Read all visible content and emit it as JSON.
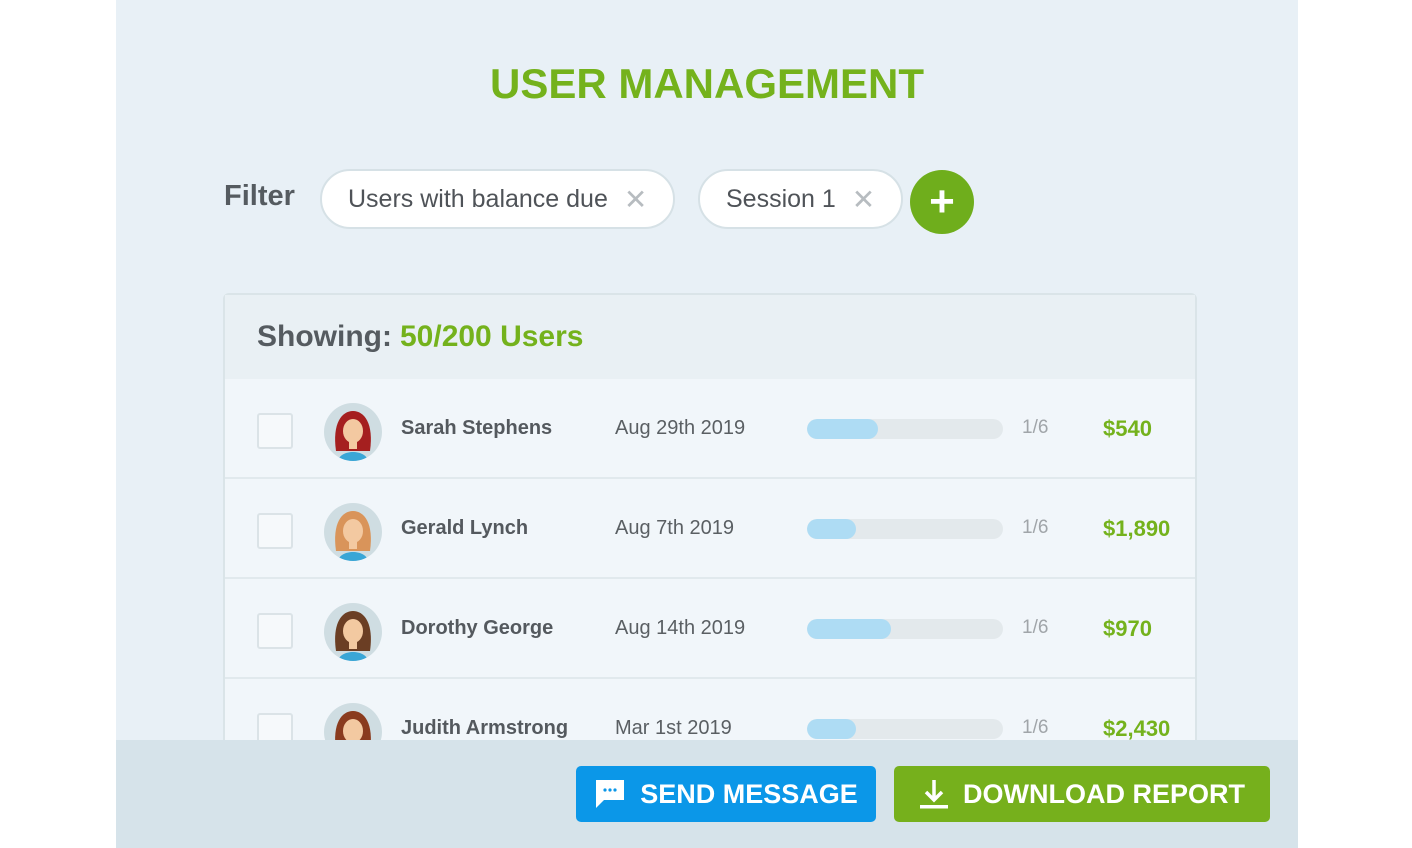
{
  "header": {
    "title": "USER MANAGEMENT"
  },
  "filter": {
    "label": "Filter",
    "chips": [
      {
        "label": "Users with balance due"
      },
      {
        "label": "Session 1"
      }
    ],
    "remove_glyph": "✕",
    "add_glyph": "+"
  },
  "table": {
    "showing_label": "Showing:",
    "showing_count": "50/200 Users",
    "rows": [
      {
        "name": "Sarah Stephens",
        "date": "Aug 29th 2019",
        "progress_pct": 36,
        "sessions": "1/6",
        "amount": "$540",
        "hair": "#a51f1f"
      },
      {
        "name": "Gerald Lynch",
        "date": "Aug 7th 2019",
        "progress_pct": 25,
        "sessions": "1/6",
        "amount": "$1,890",
        "hair": "#d9945a"
      },
      {
        "name": "Dorothy George",
        "date": "Aug 14th 2019",
        "progress_pct": 43,
        "sessions": "1/6",
        "amount": "$970",
        "hair": "#6b3e24"
      },
      {
        "name": "Judith Armstrong",
        "date": "Mar 1st 2019",
        "progress_pct": 25,
        "sessions": "1/6",
        "amount": "$2,430",
        "hair": "#8a3b1e"
      }
    ]
  },
  "footer": {
    "send_label": "SEND MESSAGE",
    "download_label": "DOWNLOAD REPORT"
  },
  "colors": {
    "accent_green": "#74b21c",
    "send_blue": "#0b97e8",
    "progress_fill": "#aedcf4"
  }
}
